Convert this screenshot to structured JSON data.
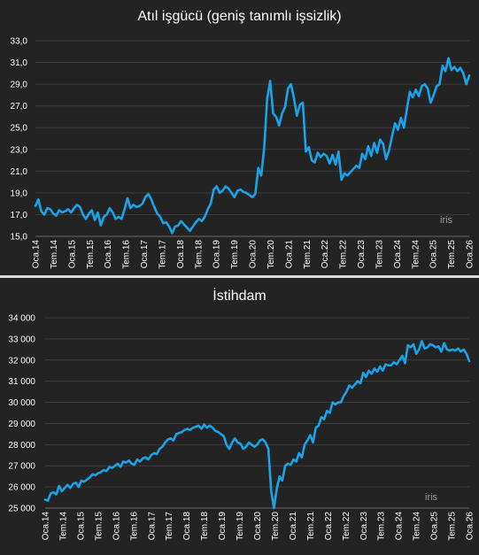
{
  "chart_data": [
    {
      "type": "line",
      "title": "Atıl işgücü (geniş tanımlı işsizlik)",
      "watermark": "iris",
      "ylim": [
        15.0,
        33.0
      ],
      "yticks": [
        "33,0",
        "31,0",
        "29,0",
        "27,0",
        "25,0",
        "23,0",
        "21,0",
        "19,0",
        "17,0",
        "15,0"
      ],
      "x_tick_labels": [
        "Oca.14",
        "Tem.14",
        "Oca.15",
        "Tem.15",
        "Oca.16",
        "Tem.16",
        "Oca.17",
        "Tem.17",
        "Oca.18",
        "Tem.18",
        "Oca.19",
        "Tem.19",
        "Oca.20",
        "Tem.20",
        "Oca.21",
        "Tem.21",
        "Oca.22",
        "Tem.22",
        "Oca.23",
        "Tem.23",
        "Oca.24",
        "Tem.24",
        "Oca.25",
        "Tem.25",
        "Oca.26"
      ],
      "grid": true,
      "line_color": "#1aa3e8",
      "series": [
        {
          "values": [
            17.8,
            18.4,
            17.3,
            17.0,
            17.6,
            17.5,
            17.1,
            16.9,
            17.4,
            17.2,
            17.3,
            17.5,
            17.2,
            17.6,
            17.9,
            17.7,
            17.0,
            16.6,
            17.1,
            17.4,
            16.5,
            17.2,
            16.0,
            16.8,
            17.0,
            17.6,
            17.2,
            16.6,
            16.8,
            16.6,
            17.5,
            18.5,
            17.6,
            17.9,
            17.7,
            17.8,
            18.0,
            18.6,
            18.9,
            18.4,
            17.7,
            17.1,
            16.8,
            16.2,
            16.3,
            15.9,
            15.3,
            15.9,
            16.0,
            16.4,
            16.1,
            15.8,
            15.5,
            15.9,
            16.3,
            16.6,
            16.4,
            16.8,
            17.5,
            18.0,
            19.3,
            19.6,
            19.0,
            19.2,
            19.6,
            19.4,
            19.0,
            18.6,
            19.2,
            19.3,
            19.1,
            19.0,
            18.8,
            18.6,
            18.9,
            21.3,
            20.6,
            23.2,
            27.7,
            29.3,
            26.3,
            26.0,
            25.2,
            26.3,
            26.9,
            28.6,
            29.0,
            27.7,
            26.1,
            27.1,
            27.3,
            22.8,
            23.2,
            22.0,
            21.8,
            22.7,
            22.3,
            22.6,
            22.4,
            21.7,
            22.5,
            21.6,
            22.8,
            20.2,
            20.8,
            20.6,
            20.9,
            21.2,
            21.5,
            21.3,
            22.6,
            22.1,
            23.3,
            22.4,
            23.6,
            22.7,
            23.9,
            23.5,
            22.1,
            22.9,
            24.2,
            25.4,
            24.8,
            25.9,
            25.0,
            26.7,
            28.3,
            27.8,
            28.5,
            27.9,
            28.8,
            29.0,
            28.6,
            27.3,
            28.0,
            28.8,
            29.0,
            30.7,
            30.2,
            31.4,
            30.3,
            30.6,
            30.2,
            30.5,
            30.0,
            29.0,
            29.8
          ]
        }
      ]
    },
    {
      "type": "line",
      "title": "İstihdam",
      "watermark": "iris",
      "ylim": [
        25000,
        34000
      ],
      "yticks": [
        "34 000",
        "33 000",
        "32 000",
        "31 000",
        "30 000",
        "29 000",
        "28 000",
        "27 000",
        "26 000",
        "25 000"
      ],
      "x_tick_labels": [
        "Oca.14",
        "Tem.14",
        "Oca.15",
        "Tem.15",
        "Oca.16",
        "Tem.16",
        "Oca.17",
        "Tem.17",
        "Oca.18",
        "Tem.18",
        "Oca.19",
        "Tem.19",
        "Oca.20",
        "Tem.20",
        "Oca.21",
        "Tem.21",
        "Oca.22",
        "Tem.22",
        "Oca.23",
        "Tem.23",
        "Oca.24",
        "Tem.24",
        "Oca.25",
        "Tem.25",
        "Oca.26"
      ],
      "grid": true,
      "line_color": "#1aa3e8",
      "series": [
        {
          "values": [
            25400,
            25350,
            25700,
            25750,
            25650,
            26050,
            25800,
            25950,
            26100,
            25950,
            26150,
            26200,
            26000,
            26300,
            26250,
            26350,
            26450,
            26600,
            26550,
            26650,
            26700,
            26800,
            26750,
            26950,
            26900,
            27000,
            27100,
            26950,
            27200,
            27150,
            27250,
            27100,
            27050,
            27300,
            27200,
            27350,
            27400,
            27300,
            27500,
            27600,
            27550,
            27800,
            27900,
            28100,
            28250,
            28300,
            28200,
            28500,
            28550,
            28600,
            28700,
            28750,
            28700,
            28800,
            28850,
            28900,
            28750,
            28950,
            28800,
            28900,
            28800,
            28650,
            28600,
            28500,
            28400,
            28000,
            27800,
            28100,
            28300,
            28100,
            28050,
            27800,
            27900,
            28100,
            28000,
            27900,
            28000,
            28200,
            28250,
            28100,
            27800,
            25800,
            25000,
            25900,
            26500,
            26300,
            27000,
            27100,
            27050,
            27300,
            27200,
            27600,
            27400,
            28000,
            28200,
            28450,
            28100,
            28800,
            28900,
            29300,
            29200,
            29600,
            29500,
            30000,
            29900,
            30000,
            30000,
            30300,
            30500,
            30800,
            30700,
            30850,
            31000,
            30900,
            31400,
            31200,
            31500,
            31350,
            31600,
            31450,
            31700,
            31500,
            31800,
            31750,
            31750,
            31900,
            31800,
            32000,
            32200,
            31850,
            32700,
            32600,
            32750,
            32300,
            32500,
            32900,
            32550,
            32600,
            32750,
            32700,
            32600,
            32650,
            32400,
            32800,
            32500,
            32450,
            32500,
            32450,
            32550,
            32400,
            32500,
            32300,
            31950
          ]
        }
      ]
    }
  ]
}
